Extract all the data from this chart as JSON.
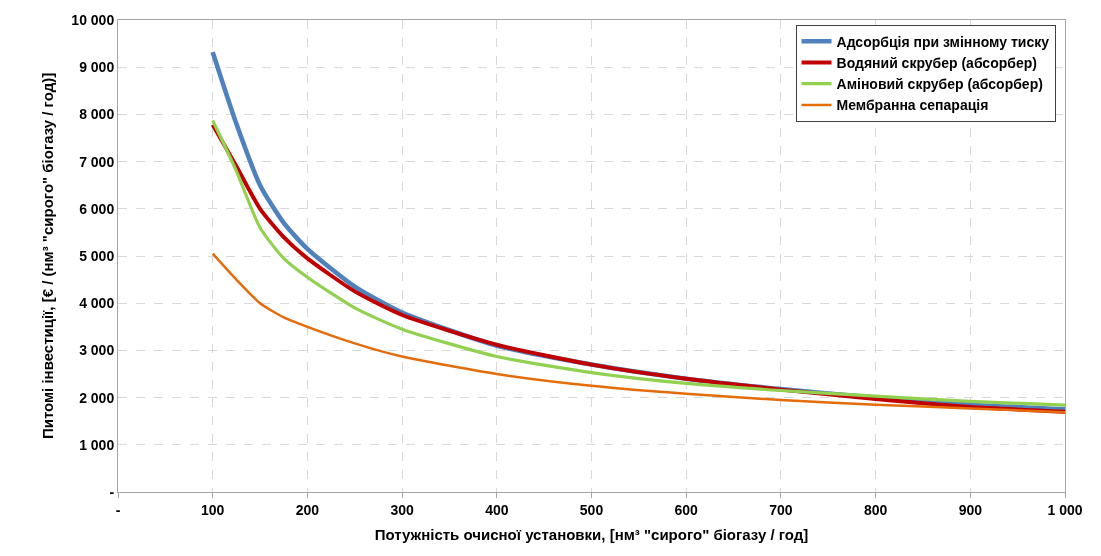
{
  "chart_data": {
    "type": "line",
    "xlabel": "Потужність очисної установки, [нм³ \"сирого\" біогазу / год]",
    "ylabel": "Питомі інвестиції, [€ / (нм³ \"сирого\" біогазу / год)]",
    "x": [
      100,
      125,
      150,
      175,
      200,
      250,
      300,
      400,
      500,
      600,
      700,
      800,
      900,
      1000
    ],
    "series": [
      {
        "name": "Адсорбція при змінному тиску",
        "color": "#4f81bd",
        "values": [
          9320,
          7800,
          6500,
          5700,
          5150,
          4350,
          3800,
          3100,
          2700,
          2400,
          2180,
          2000,
          1850,
          1750
        ]
      },
      {
        "name": "Водяний скрубер (абсорбер)",
        "color": "#c00000",
        "values": [
          7780,
          6900,
          6000,
          5400,
          4950,
          4250,
          3750,
          3120,
          2700,
          2400,
          2170,
          1970,
          1800,
          1700
        ]
      },
      {
        "name": "Аміновий скрубер (абсорбер)",
        "color": "#92d050",
        "values": [
          7870,
          6800,
          5600,
          4950,
          4550,
          3900,
          3450,
          2870,
          2530,
          2300,
          2150,
          2030,
          1920,
          1840
        ]
      },
      {
        "name": "Мембранна сепарація",
        "color": "#e46c0a",
        "values": [
          5050,
          4500,
          4000,
          3700,
          3500,
          3150,
          2870,
          2500,
          2250,
          2080,
          1950,
          1850,
          1770,
          1690
        ]
      }
    ],
    "xlim": [
      0,
      1000
    ],
    "xticks": [
      {
        "value": 0,
        "label": "-"
      },
      100,
      200,
      300,
      400,
      500,
      600,
      700,
      800,
      900,
      {
        "value": 1000,
        "label": "1 000"
      }
    ],
    "ylim": [
      0,
      10000
    ],
    "yticks": [
      {
        "value": 0,
        "label": "-"
      },
      {
        "value": 1000,
        "label": "1 000"
      },
      {
        "value": 2000,
        "label": "2 000"
      },
      {
        "value": 3000,
        "label": "3 000"
      },
      {
        "value": 4000,
        "label": "4 000"
      },
      {
        "value": 5000,
        "label": "5 000"
      },
      {
        "value": 6000,
        "label": "6 000"
      },
      {
        "value": 7000,
        "label": "7 000"
      },
      {
        "value": 8000,
        "label": "8 000"
      },
      {
        "value": 9000,
        "label": "9 000"
      },
      {
        "value": 10000,
        "label": "10 000"
      }
    ],
    "grid": true,
    "legend": "top right",
    "marker": "none",
    "line_style": "solid"
  }
}
